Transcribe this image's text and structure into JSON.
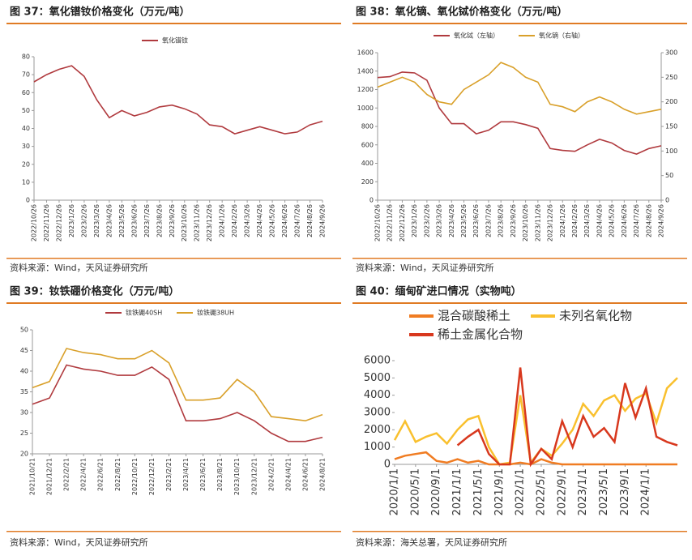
{
  "chart_data": [
    {
      "type": "line",
      "title": "图 37：氧化镨钕价格变化（万元/吨）",
      "source": "资料来源：Wind，天风证券研究所",
      "categories": [
        "2022/10/26",
        "2022/11/26",
        "2022/12/26",
        "2023/1/26",
        "2023/2/26",
        "2023/3/26",
        "2023/4/26",
        "2023/5/26",
        "2023/6/26",
        "2023/7/26",
        "2023/8/26",
        "2023/9/26",
        "2023/10/26",
        "2023/11/26",
        "2023/12/26",
        "2024/1/26",
        "2024/2/26",
        "2024/3/26",
        "2024/4/26",
        "2024/5/26",
        "2024/6/26",
        "2024/7/26",
        "2024/8/26",
        "2024/9/26"
      ],
      "series": [
        {
          "name": "氧化镨钕",
          "color": "#b03a3e",
          "values": [
            66,
            70,
            73,
            75,
            69,
            56,
            46,
            50,
            47,
            49,
            52,
            53,
            51,
            48,
            42,
            41,
            37,
            39,
            41,
            39,
            37,
            38,
            42,
            44
          ]
        }
      ],
      "ylim": [
        0,
        80
      ],
      "yticks": [
        0,
        10,
        20,
        30,
        40,
        50,
        60,
        70,
        80
      ]
    },
    {
      "type": "line",
      "title": "图 38：氧化镝、氧化铽价格变化（万元/吨）",
      "source": "资料来源：Wind，天风证券研究所",
      "categories": [
        "2022/10/26",
        "2022/11/26",
        "2022/12/26",
        "2023/1/26",
        "2023/2/26",
        "2023/3/26",
        "2023/4/26",
        "2023/5/26",
        "2023/6/26",
        "2023/7/26",
        "2023/8/26",
        "2023/9/26",
        "2023/10/26",
        "2023/11/26",
        "2023/12/26",
        "2024/1/26",
        "2024/2/26",
        "2024/3/26",
        "2024/4/26",
        "2024/5/26",
        "2024/6/26",
        "2024/7/26",
        "2024/8/26",
        "2024/9/26"
      ],
      "series": [
        {
          "name": "氧化铽（左轴）",
          "color": "#b03a3e",
          "values": [
            1330,
            1340,
            1390,
            1380,
            1300,
            1000,
            830,
            830,
            720,
            760,
            850,
            850,
            820,
            780,
            560,
            540,
            530,
            600,
            660,
            620,
            540,
            500,
            560,
            590
          ]
        },
        {
          "name": "氧化镝（右轴）",
          "color": "#d9a02a",
          "axis": "y2",
          "values": [
            230,
            240,
            250,
            240,
            215,
            200,
            195,
            225,
            240,
            255,
            280,
            270,
            250,
            240,
            195,
            190,
            180,
            200,
            210,
            200,
            185,
            175,
            180,
            185
          ]
        }
      ],
      "ylim": [
        0,
        1600
      ],
      "yticks": [
        0,
        200,
        400,
        600,
        800,
        1000,
        1200,
        1400,
        1600
      ],
      "y2lim": [
        0,
        300
      ],
      "y2ticks": [
        0,
        50,
        100,
        150,
        200,
        250,
        300
      ]
    },
    {
      "type": "line",
      "title": "图 39：钕铁硼价格变化（万元/吨）",
      "source": "资料来源：Wind，天风证券研究所",
      "categories": [
        "2021/10/21",
        "2021/12/21",
        "2022/2/21",
        "2022/4/21",
        "2022/6/21",
        "2022/8/21",
        "2022/10/21",
        "2022/12/21",
        "2023/2/21",
        "2023/4/21",
        "2023/6/21",
        "2023/8/21",
        "2023/10/21",
        "2023/12/21",
        "2024/2/21",
        "2024/4/21",
        "2024/6/21",
        "2024/8/21"
      ],
      "series": [
        {
          "name": "钕铁硼40SH",
          "color": "#b03a3e",
          "values": [
            32,
            33.5,
            41.5,
            40.5,
            40,
            39,
            39,
            41,
            38,
            28,
            28,
            28.5,
            30,
            28,
            25,
            23,
            23,
            24
          ]
        },
        {
          "name": "钕铁硼38UH",
          "color": "#d9a02a",
          "values": [
            36,
            37.5,
            45.5,
            44.5,
            44,
            43,
            43,
            45,
            42,
            33,
            33,
            33.5,
            38,
            35,
            29,
            28.5,
            28,
            29.5
          ]
        }
      ],
      "ylim": [
        20,
        50
      ],
      "yticks": [
        20,
        25,
        30,
        35,
        40,
        45,
        50
      ]
    },
    {
      "type": "line",
      "title": "图 40：缅甸矿进口情况（实物吨）",
      "source": "资料来源：海关总署，天风证券研究所",
      "categories": [
        "2020/1/1",
        null,
        "2020/5/1",
        null,
        "2020/9/1",
        null,
        "2021/1/1",
        null,
        "2021/5/1",
        null,
        "2021/9/1",
        null,
        "2022/1/1",
        null,
        "2022/5/1",
        null,
        "2022/9/1",
        null,
        "2023/1/1",
        null,
        "2023/5/1",
        null,
        "2023/9/1",
        null,
        "2024/1/1",
        null,
        null,
        null
      ],
      "series": [
        {
          "name": "混合碳酸稀土",
          "color": "#f07c22",
          "values": [
            300,
            500,
            600,
            700,
            200,
            100,
            300,
            100,
            200,
            0,
            0,
            0,
            100,
            0,
            300,
            100,
            0,
            0,
            0,
            0,
            0,
            0,
            0,
            0,
            0,
            0,
            0,
            0
          ]
        },
        {
          "name": "未列名氧化物",
          "color": "#f9c02e",
          "values": [
            1400,
            2500,
            1300,
            1600,
            1800,
            1200,
            2000,
            2600,
            2800,
            1000,
            0,
            100,
            4000,
            100,
            900,
            500,
            1200,
            2000,
            3500,
            2800,
            3700,
            4000,
            3100,
            3800,
            4100,
            2400,
            4400,
            5000
          ]
        },
        {
          "name": "稀土金属化合物",
          "color": "#d8381e",
          "values": [
            null,
            null,
            null,
            null,
            null,
            null,
            1100,
            1600,
            2000,
            600,
            0,
            0,
            5600,
            0,
            900,
            300,
            2500,
            1000,
            2800,
            1600,
            2100,
            1300,
            4700,
            2700,
            4400,
            1600,
            1300,
            1100
          ]
        }
      ],
      "ylim": [
        0,
        6000
      ],
      "yticks": [
        0,
        1000,
        2000,
        3000,
        4000,
        5000,
        6000
      ]
    }
  ]
}
